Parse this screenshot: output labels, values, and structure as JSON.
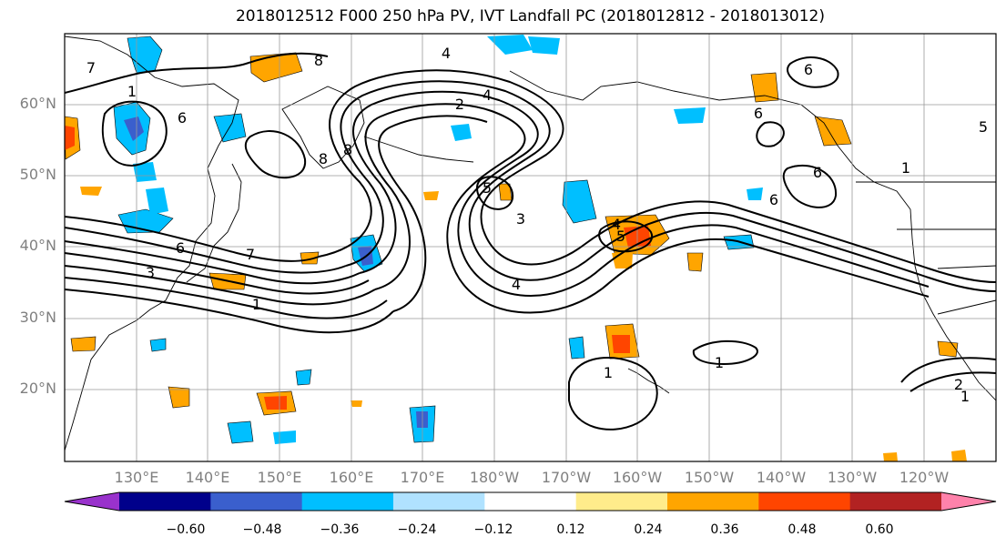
{
  "title": "2018012512 F000 250 hPa PV, IVT Landfall PC (2018012812 - 2018013012)",
  "map": {
    "lat_labels": [
      "60°N",
      "50°N",
      "40°N",
      "30°N",
      "20°N"
    ],
    "lon_labels": [
      "130°E",
      "140°E",
      "150°E",
      "160°E",
      "170°E",
      "180°W",
      "170°W",
      "160°W",
      "150°W",
      "140°W",
      "130°W",
      "120°W"
    ],
    "contour_labels": [
      "7",
      "1",
      "6",
      "8",
      "8",
      "8",
      "4",
      "2",
      "4",
      "6",
      "6",
      "5",
      "6",
      "6",
      "1",
      "5",
      "3",
      "4",
      "5",
      "6",
      "3",
      "7",
      "1",
      "4",
      "1",
      "1",
      "2",
      "1"
    ]
  },
  "colorbar": {
    "ticks": [
      "−0.60",
      "−0.48",
      "−0.36",
      "−0.24",
      "−0.12",
      "0.12",
      "0.24",
      "0.36",
      "0.48",
      "0.60"
    ],
    "colors": [
      "#9932cc",
      "#00008b",
      "#3a5fcd",
      "#00bfff",
      "#b0e2ff",
      "#ffffff",
      "#ffec8b",
      "#ffa500",
      "#ff4500",
      "#b22222",
      "#ff82ab"
    ]
  }
}
